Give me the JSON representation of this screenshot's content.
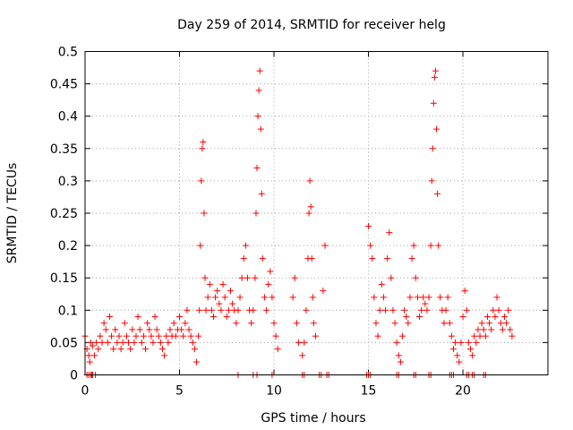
{
  "chart_data": {
    "type": "scatter",
    "title": "Day 259 of 2014, SRMTID for receiver helg",
    "xlabel": "GPS time / hours",
    "ylabel": "SRMTID / TECUs",
    "xlim": [
      0,
      24.5
    ],
    "ylim": [
      0,
      0.5
    ],
    "x_ticks": [
      0,
      5,
      10,
      15,
      20
    ],
    "x_tick_labels": [
      "0",
      "5",
      "10",
      "15",
      "20"
    ],
    "y_ticks": [
      0,
      0.05,
      0.1,
      0.15,
      0.2,
      0.25,
      0.3,
      0.35,
      0.4,
      0.45,
      0.5
    ],
    "y_tick_labels": [
      "0",
      "0.05",
      "0.1",
      "0.15",
      "0.2",
      "0.25",
      "0.3",
      "0.35",
      "0.4",
      "0.45",
      "0.5"
    ],
    "grid": true,
    "marker": "+",
    "color": "#ff0000",
    "series": [
      {
        "name": "SRMTID",
        "points": [
          [
            0.0,
            0.06
          ],
          [
            0.1,
            0.04
          ],
          [
            0.2,
            0.03
          ],
          [
            0.25,
            0.02
          ],
          [
            0.3,
            0.05
          ],
          [
            0.35,
            0.0
          ],
          [
            0.4,
            0.045
          ],
          [
            0.5,
            0.03
          ],
          [
            0.55,
            0.0
          ],
          [
            0.6,
            0.05
          ],
          [
            0.7,
            0.04
          ],
          [
            0.8,
            0.06
          ],
          [
            0.9,
            0.05
          ],
          [
            1.0,
            0.08
          ],
          [
            1.1,
            0.07
          ],
          [
            1.2,
            0.05
          ],
          [
            1.3,
            0.09
          ],
          [
            1.4,
            0.06
          ],
          [
            1.5,
            0.04
          ],
          [
            1.6,
            0.07
          ],
          [
            1.7,
            0.05
          ],
          [
            1.8,
            0.06
          ],
          [
            1.9,
            0.04
          ],
          [
            2.0,
            0.05
          ],
          [
            2.1,
            0.08
          ],
          [
            2.2,
            0.06
          ],
          [
            2.3,
            0.05
          ],
          [
            2.4,
            0.04
          ],
          [
            2.5,
            0.07
          ],
          [
            2.6,
            0.05
          ],
          [
            2.7,
            0.06
          ],
          [
            2.8,
            0.09
          ],
          [
            2.9,
            0.07
          ],
          [
            3.0,
            0.05
          ],
          [
            3.1,
            0.06
          ],
          [
            3.2,
            0.04
          ],
          [
            3.3,
            0.08
          ],
          [
            3.4,
            0.07
          ],
          [
            3.5,
            0.06
          ],
          [
            3.6,
            0.05
          ],
          [
            3.7,
            0.09
          ],
          [
            3.8,
            0.07
          ],
          [
            3.9,
            0.06
          ],
          [
            4.0,
            0.05
          ],
          [
            4.1,
            0.04
          ],
          [
            4.2,
            0.03
          ],
          [
            4.3,
            0.06
          ],
          [
            4.4,
            0.05
          ],
          [
            4.5,
            0.07
          ],
          [
            4.6,
            0.06
          ],
          [
            4.7,
            0.08
          ],
          [
            4.8,
            0.06
          ],
          [
            4.9,
            0.07
          ],
          [
            5.0,
            0.09
          ],
          [
            5.1,
            0.07
          ],
          [
            5.2,
            0.06
          ],
          [
            5.3,
            0.08
          ],
          [
            5.4,
            0.1
          ],
          [
            5.5,
            0.07
          ],
          [
            5.6,
            0.06
          ],
          [
            5.7,
            0.05
          ],
          [
            5.8,
            0.04
          ],
          [
            5.9,
            0.02
          ],
          [
            6.0,
            0.06
          ],
          [
            6.05,
            0.1
          ],
          [
            6.1,
            0.2
          ],
          [
            6.15,
            0.3
          ],
          [
            6.2,
            0.35
          ],
          [
            6.25,
            0.36
          ],
          [
            6.3,
            0.25
          ],
          [
            6.35,
            0.15
          ],
          [
            6.4,
            0.1
          ],
          [
            6.5,
            0.12
          ],
          [
            6.6,
            0.14
          ],
          [
            6.7,
            0.1
          ],
          [
            6.8,
            0.09
          ],
          [
            6.9,
            0.12
          ],
          [
            7.0,
            0.13
          ],
          [
            7.1,
            0.11
          ],
          [
            7.2,
            0.1
          ],
          [
            7.3,
            0.14
          ],
          [
            7.4,
            0.12
          ],
          [
            7.5,
            0.09
          ],
          [
            7.6,
            0.1
          ],
          [
            7.7,
            0.13
          ],
          [
            7.8,
            0.11
          ],
          [
            7.9,
            0.1
          ],
          [
            8.0,
            0.08
          ],
          [
            8.1,
            0.1
          ],
          [
            8.2,
            0.12
          ],
          [
            8.3,
            0.15
          ],
          [
            8.4,
            0.18
          ],
          [
            8.5,
            0.2
          ],
          [
            8.6,
            0.15
          ],
          [
            8.7,
            0.1
          ],
          [
            8.8,
            0.08
          ],
          [
            8.9,
            0.1
          ],
          [
            9.0,
            0.15
          ],
          [
            9.05,
            0.25
          ],
          [
            9.1,
            0.32
          ],
          [
            9.15,
            0.4
          ],
          [
            9.2,
            0.44
          ],
          [
            9.25,
            0.47
          ],
          [
            9.3,
            0.38
          ],
          [
            9.35,
            0.28
          ],
          [
            9.4,
            0.18
          ],
          [
            9.5,
            0.12
          ],
          [
            9.6,
            0.1
          ],
          [
            9.7,
            0.14
          ],
          [
            9.8,
            0.16
          ],
          [
            9.9,
            0.12
          ],
          [
            10.0,
            0.08
          ],
          [
            10.1,
            0.06
          ],
          [
            10.2,
            0.04
          ],
          [
            11.0,
            0.12
          ],
          [
            11.1,
            0.15
          ],
          [
            11.2,
            0.08
          ],
          [
            11.3,
            0.05
          ],
          [
            11.5,
            0.03
          ],
          [
            11.6,
            0.05
          ],
          [
            11.7,
            0.1
          ],
          [
            11.8,
            0.18
          ],
          [
            11.85,
            0.25
          ],
          [
            11.9,
            0.3
          ],
          [
            11.95,
            0.26
          ],
          [
            12.0,
            0.18
          ],
          [
            12.05,
            0.12
          ],
          [
            12.1,
            0.08
          ],
          [
            12.2,
            0.06
          ],
          [
            12.6,
            0.13
          ],
          [
            12.7,
            0.2
          ],
          [
            15.0,
            0.23
          ],
          [
            15.1,
            0.2
          ],
          [
            15.2,
            0.18
          ],
          [
            15.3,
            0.12
          ],
          [
            15.4,
            0.08
          ],
          [
            15.5,
            0.06
          ],
          [
            15.6,
            0.1
          ],
          [
            15.7,
            0.14
          ],
          [
            15.8,
            0.12
          ],
          [
            15.9,
            0.1
          ],
          [
            16.0,
            0.18
          ],
          [
            16.1,
            0.22
          ],
          [
            16.2,
            0.15
          ],
          [
            16.3,
            0.1
          ],
          [
            16.4,
            0.08
          ],
          [
            16.5,
            0.05
          ],
          [
            16.6,
            0.03
          ],
          [
            16.7,
            0.02
          ],
          [
            16.8,
            0.06
          ],
          [
            16.9,
            0.1
          ],
          [
            17.0,
            0.09
          ],
          [
            17.1,
            0.08
          ],
          [
            17.2,
            0.12
          ],
          [
            17.3,
            0.18
          ],
          [
            17.4,
            0.2
          ],
          [
            17.5,
            0.15
          ],
          [
            17.6,
            0.12
          ],
          [
            17.7,
            0.09
          ],
          [
            17.8,
            0.1
          ],
          [
            17.9,
            0.12
          ],
          [
            18.0,
            0.11
          ],
          [
            18.1,
            0.1
          ],
          [
            18.2,
            0.12
          ],
          [
            18.3,
            0.2
          ],
          [
            18.35,
            0.3
          ],
          [
            18.4,
            0.35
          ],
          [
            18.45,
            0.42
          ],
          [
            18.5,
            0.46
          ],
          [
            18.55,
            0.47
          ],
          [
            18.6,
            0.38
          ],
          [
            18.65,
            0.28
          ],
          [
            18.7,
            0.2
          ],
          [
            18.8,
            0.12
          ],
          [
            18.9,
            0.1
          ],
          [
            19.0,
            0.08
          ],
          [
            19.1,
            0.1
          ],
          [
            19.2,
            0.12
          ],
          [
            19.3,
            0.08
          ],
          [
            19.4,
            0.06
          ],
          [
            19.5,
            0.04
          ],
          [
            19.6,
            0.05
          ],
          [
            19.7,
            0.03
          ],
          [
            19.8,
            0.02
          ],
          [
            19.9,
            0.05
          ],
          [
            20.0,
            0.09
          ],
          [
            20.1,
            0.13
          ],
          [
            20.2,
            0.1
          ],
          [
            20.3,
            0.05
          ],
          [
            20.4,
            0.04
          ],
          [
            20.5,
            0.03
          ],
          [
            20.6,
            0.06
          ],
          [
            20.7,
            0.05
          ],
          [
            20.8,
            0.07
          ],
          [
            20.9,
            0.06
          ],
          [
            21.0,
            0.08
          ],
          [
            21.1,
            0.07
          ],
          [
            21.2,
            0.06
          ],
          [
            21.3,
            0.09
          ],
          [
            21.4,
            0.08
          ],
          [
            21.5,
            0.07
          ],
          [
            21.6,
            0.1
          ],
          [
            21.7,
            0.09
          ],
          [
            21.8,
            0.12
          ],
          [
            21.9,
            0.1
          ],
          [
            22.0,
            0.08
          ],
          [
            22.1,
            0.07
          ],
          [
            22.2,
            0.09
          ],
          [
            22.3,
            0.08
          ],
          [
            22.4,
            0.1
          ],
          [
            22.5,
            0.07
          ],
          [
            22.6,
            0.06
          ],
          [
            0.1,
            0.0
          ],
          [
            0.2,
            0.0
          ],
          [
            0.3,
            0.0
          ],
          [
            0.4,
            0.0
          ],
          [
            8.1,
            0.0
          ],
          [
            8.9,
            0.0
          ],
          [
            9.1,
            0.0
          ],
          [
            9.9,
            0.0
          ],
          [
            11.5,
            0.0
          ],
          [
            11.6,
            0.0
          ],
          [
            12.4,
            0.0
          ],
          [
            12.5,
            0.0
          ],
          [
            12.8,
            0.0
          ],
          [
            12.9,
            0.0
          ],
          [
            14.9,
            0.0
          ],
          [
            15.0,
            0.0
          ],
          [
            15.1,
            0.0
          ],
          [
            16.5,
            0.0
          ],
          [
            16.6,
            0.0
          ],
          [
            17.4,
            0.0
          ],
          [
            17.5,
            0.0
          ],
          [
            18.2,
            0.0
          ],
          [
            18.3,
            0.0
          ],
          [
            19.3,
            0.0
          ],
          [
            19.4,
            0.0
          ],
          [
            19.5,
            0.0
          ],
          [
            20.2,
            0.0
          ],
          [
            20.3,
            0.0
          ],
          [
            20.5,
            0.0
          ],
          [
            20.6,
            0.0
          ],
          [
            21.1,
            0.0
          ],
          [
            21.2,
            0.0
          ]
        ]
      }
    ]
  }
}
